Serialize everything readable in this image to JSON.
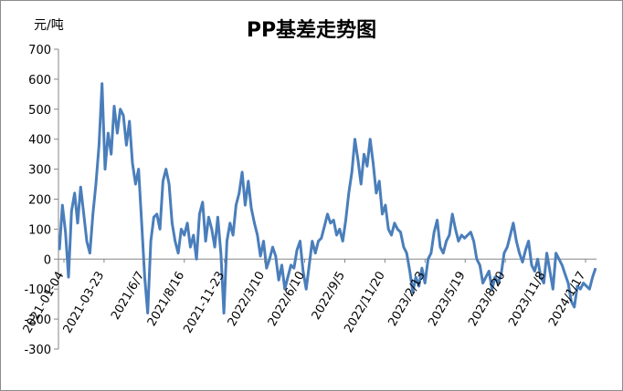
{
  "chart_data": {
    "type": "line",
    "title": "PP基差走势图",
    "unit_label": "元/吨",
    "ylim": [
      -300,
      700
    ],
    "y_ticks": [
      "700",
      "600",
      "500",
      "400",
      "300",
      "200",
      "100",
      "0",
      "-100",
      "-200",
      "-300"
    ],
    "x_tick_labels": [
      "2021-01-04",
      "2021-03-23",
      "2021/6/7",
      "2021/8/16",
      "2021-11-23",
      "2022/3/10",
      "2022/6/10",
      "2022/9/5",
      "2022/11/20",
      "2023/2/13",
      "2023/5/19",
      "2023/8/20",
      "2023/11/8",
      "2024/1/17"
    ],
    "grid": false,
    "legend": "none",
    "line_color": "#4a7ebb",
    "series": [
      {
        "values": [
          30,
          180,
          90,
          -60,
          160,
          220,
          120,
          240,
          150,
          60,
          20,
          150,
          250,
          380,
          585,
          300,
          420,
          350,
          510,
          420,
          500,
          480,
          380,
          460,
          320,
          250,
          300,
          120,
          -60,
          -180,
          60,
          140,
          150,
          100,
          260,
          300,
          250,
          120,
          60,
          20,
          100,
          80,
          120,
          40,
          80,
          0,
          150,
          190,
          60,
          140,
          100,
          40,
          140,
          20,
          -180,
          60,
          120,
          80,
          180,
          220,
          290,
          180,
          260,
          170,
          120,
          80,
          10,
          60,
          -30,
          0,
          40,
          10,
          -70,
          -20,
          -100,
          -60,
          -20,
          -30,
          30,
          60,
          -40,
          -100,
          -20,
          60,
          20,
          60,
          70,
          110,
          150,
          120,
          130,
          80,
          100,
          60,
          130,
          220,
          290,
          400,
          330,
          250,
          350,
          310,
          400,
          320,
          220,
          260,
          150,
          180,
          100,
          80,
          120,
          100,
          90,
          40,
          20,
          -40,
          -110,
          -60,
          -90,
          -30,
          -80,
          0,
          20,
          90,
          130,
          40,
          20,
          60,
          80,
          150,
          100,
          60,
          80,
          70,
          80,
          90,
          60,
          0,
          -20,
          -80,
          -60,
          -40,
          -100,
          -60,
          -80,
          -50,
          20,
          40,
          80,
          120,
          60,
          20,
          -10,
          30,
          60,
          -20,
          -40,
          0,
          -60,
          -80,
          20,
          -40,
          -100,
          20,
          0,
          -20,
          -50,
          -80,
          -140,
          -160,
          -90,
          -100,
          -80,
          -90,
          -100,
          -60,
          -30
        ]
      }
    ]
  }
}
